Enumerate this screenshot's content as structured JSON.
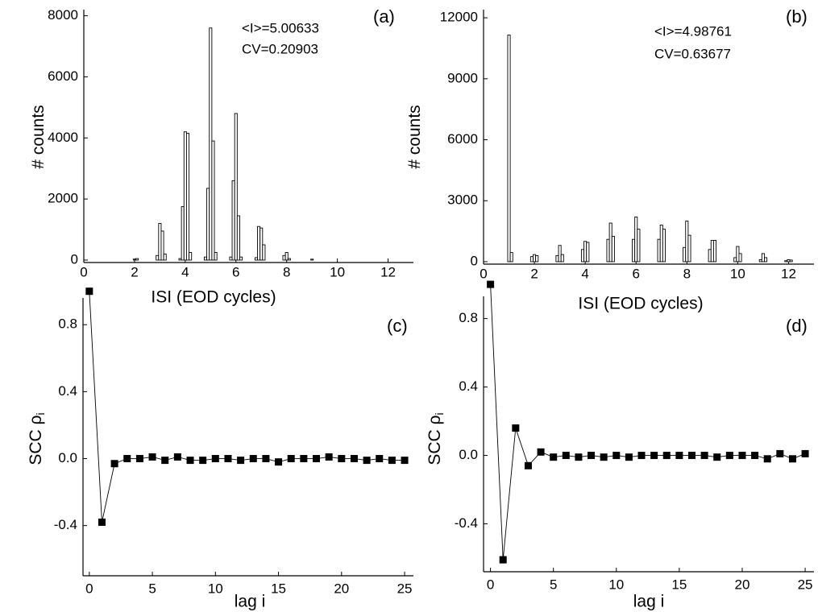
{
  "chart_data": [
    {
      "type": "bar",
      "panel_label": "(a)",
      "annotations": [
        "<I>=5.00633",
        "CV=0.20903"
      ],
      "xlabel": "ISI (EOD cycles)",
      "ylabel": "# counts",
      "color": "#ffffff",
      "edgecolor": "#000000",
      "x": [
        2.0,
        2.1,
        2.9,
        3.0,
        3.1,
        3.2,
        3.8,
        3.9,
        4.0,
        4.1,
        4.2,
        4.8,
        4.9,
        5.0,
        5.1,
        5.2,
        5.8,
        5.9,
        6.0,
        6.1,
        6.2,
        6.8,
        6.9,
        7.0,
        7.1,
        7.9,
        8.0,
        8.1,
        9.0
      ],
      "values": [
        30,
        50,
        150,
        1200,
        950,
        200,
        50,
        1750,
        4200,
        4150,
        250,
        100,
        2350,
        7600,
        3900,
        250,
        100,
        2600,
        4800,
        1450,
        100,
        80,
        1100,
        1050,
        500,
        150,
        250,
        50,
        30
      ],
      "xlim": [
        0,
        13
      ],
      "xticks": [
        0,
        2,
        4,
        6,
        8,
        10,
        12
      ],
      "ylim": [
        -80,
        8200
      ],
      "yticks": [
        0,
        2000,
        4000,
        6000,
        8000
      ]
    },
    {
      "type": "bar",
      "panel_label": "(b)",
      "annotations": [
        "<I>=4.98761",
        "CV=0.63677"
      ],
      "xlabel": "ISI (EOD cycles)",
      "ylabel": "# counts",
      "color": "#ffffff",
      "edgecolor": "#000000",
      "x": [
        1.0,
        1.1,
        1.9,
        2.0,
        2.1,
        2.9,
        3.0,
        3.1,
        3.9,
        4.0,
        4.1,
        4.9,
        5.0,
        5.1,
        5.9,
        6.0,
        6.1,
        6.9,
        7.0,
        7.1,
        7.9,
        8.0,
        8.1,
        8.9,
        9.0,
        9.1,
        9.9,
        10.0,
        10.1,
        10.9,
        11.0,
        11.1,
        11.9,
        12.0,
        12.1
      ],
      "values": [
        11150,
        450,
        250,
        350,
        300,
        300,
        800,
        350,
        600,
        1000,
        950,
        1100,
        1900,
        1250,
        1100,
        2200,
        1600,
        1100,
        1800,
        1600,
        700,
        2000,
        1300,
        600,
        1050,
        1050,
        200,
        750,
        400,
        100,
        400,
        200,
        50,
        100,
        80
      ],
      "xlim": [
        0,
        13
      ],
      "xticks": [
        0,
        2,
        4,
        6,
        8,
        10,
        12
      ],
      "ylim": [
        -120,
        12400
      ],
      "yticks": [
        0,
        3000,
        6000,
        9000,
        12000
      ]
    },
    {
      "type": "line",
      "panel_label": "(c)",
      "xlabel": "lag i",
      "ylabel": "SCC ρ",
      "ylabel_sub": "i",
      "color": "#000000",
      "marker": "square",
      "x": [
        0,
        1,
        2,
        3,
        4,
        5,
        6,
        7,
        8,
        9,
        10,
        11,
        12,
        13,
        14,
        15,
        16,
        17,
        18,
        19,
        20,
        21,
        22,
        23,
        24,
        25
      ],
      "values": [
        1.0,
        -0.38,
        -0.03,
        0.0,
        0.0,
        0.01,
        -0.01,
        0.01,
        -0.01,
        -0.01,
        0.0,
        0.0,
        -0.01,
        0.0,
        0.0,
        -0.02,
        0.0,
        0.0,
        0.0,
        0.01,
        0.0,
        0.0,
        -0.01,
        0.0,
        -0.01,
        -0.01
      ],
      "xlim": [
        -0.5,
        25.7
      ],
      "xticks": [
        0,
        5,
        10,
        15,
        20,
        25
      ],
      "ylim": [
        -0.7,
        0.96
      ],
      "yticks": [
        -0.4,
        {
          "value": 0,
          "label": "0.0"
        },
        0.4,
        0.8
      ]
    },
    {
      "type": "line",
      "panel_label": "(d)",
      "xlabel": "lag i",
      "ylabel": "SCC ρ",
      "ylabel_sub": "i",
      "color": "#000000",
      "marker": "square",
      "x": [
        0,
        1,
        2,
        3,
        4,
        5,
        6,
        7,
        8,
        9,
        10,
        11,
        12,
        13,
        14,
        15,
        16,
        17,
        18,
        19,
        20,
        21,
        22,
        23,
        24,
        25
      ],
      "values": [
        1.0,
        -0.61,
        0.16,
        -0.06,
        0.02,
        -0.01,
        0.0,
        -0.01,
        0.0,
        -0.01,
        0.0,
        -0.01,
        0.0,
        0.0,
        0.0,
        0.0,
        0.0,
        0.0,
        -0.01,
        0.0,
        0.0,
        0.0,
        -0.02,
        0.01,
        -0.02,
        0.01
      ],
      "xlim": [
        -0.55,
        25.7
      ],
      "xticks": [
        0,
        5,
        10,
        15,
        20,
        25
      ],
      "ylim": [
        -0.68,
        0.93
      ],
      "yticks": [
        -0.4,
        {
          "value": 0,
          "label": "0.0"
        },
        0.4,
        0.8
      ]
    }
  ]
}
